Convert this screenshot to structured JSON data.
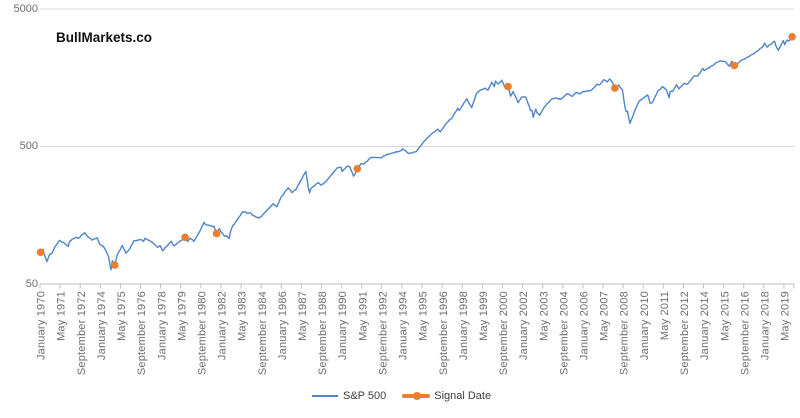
{
  "branding": {
    "title": "BullMarkets.co"
  },
  "colors": {
    "sp500_line": "#4E86C8",
    "signal": "#ED7D31",
    "gridline": "#D9D9D9",
    "axis": "#BFBFBF",
    "axis_text": "#6E6E6E",
    "legend_text": "#3F3F3F"
  },
  "legend": {
    "items": [
      {
        "label": "S&P 500",
        "swatch": "blue-line"
      },
      {
        "label": "Signal Date",
        "swatch": "orange-line-dot"
      }
    ],
    "position": "bottom-center"
  },
  "chart_data": {
    "type": "line",
    "title": "",
    "xlabel": "",
    "ylabel": "",
    "grid": "horizontal-only",
    "y_axis": {
      "scale": "log",
      "ticks": [
        5000,
        500,
        50
      ],
      "labels": [
        "5000",
        "500",
        "50"
      ],
      "ylim": [
        50,
        5000
      ]
    },
    "x_axis": {
      "start_month": "1970-01",
      "end_month": "2019-12",
      "tick_interval_months": 16,
      "tick_labels": [
        "January 1970",
        "May 1971",
        "September 1972",
        "January 1974",
        "May 1975",
        "September 1976",
        "January 1978",
        "May 1979",
        "September 1980",
        "January 1982",
        "May 1983",
        "September 1984",
        "January 1986",
        "May 1987",
        "September 1988",
        "January 1990",
        "May 1991",
        "September 1992",
        "January 1994",
        "May 1995",
        "September 1996",
        "January 1998",
        "May 1999",
        "September 2000",
        "January 2002",
        "May 2003",
        "September 2004",
        "January 2006",
        "May 2007",
        "September 2008",
        "January 2010",
        "May 2011",
        "September 2012",
        "January 2014",
        "May 2015",
        "September 2016",
        "January 2018",
        "May 2019"
      ]
    },
    "series": [
      {
        "name": "S&P 500",
        "anchors": [
          [
            "1970-01",
            85.0
          ],
          [
            "1970-03",
            89.6
          ],
          [
            "1970-04",
            81.5
          ],
          [
            "1970-06",
            72.7
          ],
          [
            "1970-08",
            81.5
          ],
          [
            "1970-10",
            83.3
          ],
          [
            "1970-12",
            92.2
          ],
          [
            "1971-04",
            103.9
          ],
          [
            "1971-08",
            99.0
          ],
          [
            "1971-11",
            94.0
          ],
          [
            "1971-12",
            102.1
          ],
          [
            "1972-05",
            109.5
          ],
          [
            "1972-07",
            107.4
          ],
          [
            "1972-12",
            118.1
          ],
          [
            "1973-02",
            111.7
          ],
          [
            "1973-06",
            104.3
          ],
          [
            "1973-10",
            108.3
          ],
          [
            "1973-12",
            97.6
          ],
          [
            "1974-03",
            94.0
          ],
          [
            "1974-05",
            87.3
          ],
          [
            "1974-07",
            79.3
          ],
          [
            "1974-09",
            63.5
          ],
          [
            "1974-10",
            73.9
          ],
          [
            "1974-12",
            68.6
          ],
          [
            "1975-02",
            81.6
          ],
          [
            "1975-06",
            95.2
          ],
          [
            "1975-09",
            83.9
          ],
          [
            "1975-12",
            90.2
          ],
          [
            "1976-03",
            102.8
          ],
          [
            "1976-09",
            105.2
          ],
          [
            "1976-11",
            102.1
          ],
          [
            "1976-12",
            107.5
          ],
          [
            "1977-06",
            100.5
          ],
          [
            "1977-10",
            92.3
          ],
          [
            "1977-12",
            95.1
          ],
          [
            "1978-02",
            87.0
          ],
          [
            "1978-09",
            102.5
          ],
          [
            "1978-11",
            94.7
          ],
          [
            "1978-12",
            96.1
          ],
          [
            "1979-08",
            109.3
          ],
          [
            "1979-10",
            101.8
          ],
          [
            "1979-12",
            107.9
          ],
          [
            "1980-03",
            102.1
          ],
          [
            "1980-08",
            122.4
          ],
          [
            "1980-11",
            140.5
          ],
          [
            "1980-12",
            135.8
          ],
          [
            "1981-04",
            132.8
          ],
          [
            "1981-07",
            130.9
          ],
          [
            "1981-09",
            116.2
          ],
          [
            "1981-11",
            126.3
          ],
          [
            "1981-12",
            122.6
          ],
          [
            "1982-03",
            112.0
          ],
          [
            "1982-05",
            111.9
          ],
          [
            "1982-07",
            107.1
          ],
          [
            "1982-08",
            119.5
          ],
          [
            "1982-10",
            133.7
          ],
          [
            "1982-12",
            140.6
          ],
          [
            "1983-06",
            168.1
          ],
          [
            "1983-10",
            163.6
          ],
          [
            "1983-12",
            164.9
          ],
          [
            "1984-02",
            157.1
          ],
          [
            "1984-07",
            150.7
          ],
          [
            "1984-11",
            163.6
          ],
          [
            "1984-12",
            167.2
          ],
          [
            "1985-06",
            191.9
          ],
          [
            "1985-09",
            182.1
          ],
          [
            "1985-12",
            211.3
          ],
          [
            "1986-06",
            250.8
          ],
          [
            "1986-09",
            231.3
          ],
          [
            "1986-12",
            242.2
          ],
          [
            "1987-08",
            329.8
          ],
          [
            "1987-10",
            251.8
          ],
          [
            "1987-11",
            230.3
          ],
          [
            "1987-12",
            247.1
          ],
          [
            "1988-06",
            273.5
          ],
          [
            "1988-08",
            261.5
          ],
          [
            "1988-12",
            277.7
          ],
          [
            "1989-09",
            349.2
          ],
          [
            "1989-12",
            353.4
          ],
          [
            "1990-01",
            329.1
          ],
          [
            "1990-05",
            361.2
          ],
          [
            "1990-07",
            356.2
          ],
          [
            "1990-10",
            304.0
          ],
          [
            "1990-12",
            330.2
          ],
          [
            "1991-01",
            343.9
          ],
          [
            "1991-04",
            375.3
          ],
          [
            "1991-06",
            371.2
          ],
          [
            "1991-12",
            417.1
          ],
          [
            "1992-04",
            414.9
          ],
          [
            "1992-08",
            414.0
          ],
          [
            "1992-12",
            435.7
          ],
          [
            "1993-06",
            450.5
          ],
          [
            "1993-12",
            466.5
          ],
          [
            "1994-01",
            481.6
          ],
          [
            "1994-06",
            444.3
          ],
          [
            "1994-12",
            459.3
          ],
          [
            "1995-06",
            544.8
          ],
          [
            "1995-12",
            615.9
          ],
          [
            "1996-05",
            669.1
          ],
          [
            "1996-07",
            639.9
          ],
          [
            "1996-12",
            740.7
          ],
          [
            "1997-04",
            801.3
          ],
          [
            "1997-09",
            947.3
          ],
          [
            "1997-10",
            914.6
          ],
          [
            "1997-12",
            970.4
          ],
          [
            "1998-04",
            1111.8
          ],
          [
            "1998-08",
            957.3
          ],
          [
            "1998-12",
            1229.2
          ],
          [
            "1999-03",
            1286.4
          ],
          [
            "1999-07",
            1328.7
          ],
          [
            "1999-09",
            1282.7
          ],
          [
            "1999-12",
            1469.3
          ],
          [
            "2000-02",
            1366.4
          ],
          [
            "2000-03",
            1498.6
          ],
          [
            "2000-05",
            1420.6
          ],
          [
            "2000-08",
            1517.7
          ],
          [
            "2000-11",
            1315.0
          ],
          [
            "2000-12",
            1320.3
          ],
          [
            "2001-01",
            1366.0
          ],
          [
            "2001-03",
            1160.3
          ],
          [
            "2001-05",
            1255.8
          ],
          [
            "2001-09",
            1040.9
          ],
          [
            "2001-12",
            1148.1
          ],
          [
            "2002-03",
            1147.4
          ],
          [
            "2002-07",
            911.6
          ],
          [
            "2002-08",
            916.1
          ],
          [
            "2002-09",
            815.3
          ],
          [
            "2002-11",
            936.3
          ],
          [
            "2002-12",
            879.8
          ],
          [
            "2003-02",
            841.2
          ],
          [
            "2003-06",
            974.5
          ],
          [
            "2003-12",
            1111.9
          ],
          [
            "2004-03",
            1126.2
          ],
          [
            "2004-07",
            1101.7
          ],
          [
            "2004-12",
            1211.9
          ],
          [
            "2005-04",
            1156.9
          ],
          [
            "2005-07",
            1234.2
          ],
          [
            "2005-10",
            1207.0
          ],
          [
            "2005-12",
            1248.3
          ],
          [
            "2006-05",
            1270.1
          ],
          [
            "2006-07",
            1276.7
          ],
          [
            "2006-12",
            1418.3
          ],
          [
            "2007-02",
            1406.8
          ],
          [
            "2007-05",
            1530.6
          ],
          [
            "2007-08",
            1474.0
          ],
          [
            "2007-10",
            1549.4
          ],
          [
            "2007-12",
            1468.4
          ],
          [
            "2008-02",
            1330.6
          ],
          [
            "2008-05",
            1400.4
          ],
          [
            "2008-08",
            1283.0
          ],
          [
            "2008-10",
            968.8
          ],
          [
            "2008-11",
            896.2
          ],
          [
            "2008-12",
            903.3
          ],
          [
            "2009-02",
            735.1
          ],
          [
            "2009-06",
            919.3
          ],
          [
            "2009-09",
            1057.1
          ],
          [
            "2009-12",
            1115.1
          ],
          [
            "2010-04",
            1186.7
          ],
          [
            "2010-06",
            1030.7
          ],
          [
            "2010-08",
            1049.3
          ],
          [
            "2010-12",
            1257.6
          ],
          [
            "2011-04",
            1363.6
          ],
          [
            "2011-07",
            1292.3
          ],
          [
            "2011-09",
            1131.4
          ],
          [
            "2011-10",
            1253.3
          ],
          [
            "2011-12",
            1257.6
          ],
          [
            "2012-03",
            1408.5
          ],
          [
            "2012-05",
            1310.3
          ],
          [
            "2012-09",
            1440.7
          ],
          [
            "2012-11",
            1416.2
          ],
          [
            "2012-12",
            1426.2
          ],
          [
            "2013-05",
            1630.7
          ],
          [
            "2013-08",
            1633.0
          ],
          [
            "2013-12",
            1848.4
          ],
          [
            "2014-01",
            1782.6
          ],
          [
            "2014-09",
            1972.3
          ],
          [
            "2014-10",
            2018.1
          ],
          [
            "2014-12",
            2058.9
          ],
          [
            "2015-02",
            2104.5
          ],
          [
            "2015-06",
            2063.1
          ],
          [
            "2015-09",
            1920.0
          ],
          [
            "2015-11",
            2080.4
          ],
          [
            "2015-12",
            2043.9
          ],
          [
            "2016-01",
            1940.2
          ],
          [
            "2016-02",
            1932.2
          ],
          [
            "2016-06",
            2098.9
          ],
          [
            "2016-12",
            2238.8
          ],
          [
            "2017-06",
            2423.4
          ],
          [
            "2017-12",
            2673.6
          ],
          [
            "2018-01",
            2823.8
          ],
          [
            "2018-03",
            2640.9
          ],
          [
            "2018-09",
            2914.0
          ],
          [
            "2018-10",
            2711.7
          ],
          [
            "2018-12",
            2506.9
          ],
          [
            "2019-04",
            2945.8
          ],
          [
            "2019-05",
            2752.1
          ],
          [
            "2019-07",
            2980.4
          ],
          [
            "2019-08",
            2926.5
          ],
          [
            "2019-10",
            3037.6
          ],
          [
            "2019-11",
            3141.0
          ],
          [
            "2019-12",
            3230.8
          ]
        ]
      }
    ],
    "signals": [
      {
        "date": "January 1970",
        "month": "1970-01",
        "value": 85.0
      },
      {
        "date": "December 1974",
        "month": "1974-12",
        "value": 68.6
      },
      {
        "date": "August 1979",
        "month": "1979-08",
        "value": 109.3
      },
      {
        "date": "September 1981",
        "month": "1981-09",
        "value": 116.2
      },
      {
        "date": "January 1991",
        "month": "1991-01",
        "value": 343.9
      },
      {
        "date": "January 2001",
        "month": "2001-01",
        "value": 1366.0
      },
      {
        "date": "February 2008",
        "month": "2008-02",
        "value": 1330.6
      },
      {
        "date": "January 2016",
        "month": "2016-01",
        "value": 1940.2
      },
      {
        "date": "November 2019",
        "month": "2019-11",
        "value": 3141.0
      }
    ]
  }
}
